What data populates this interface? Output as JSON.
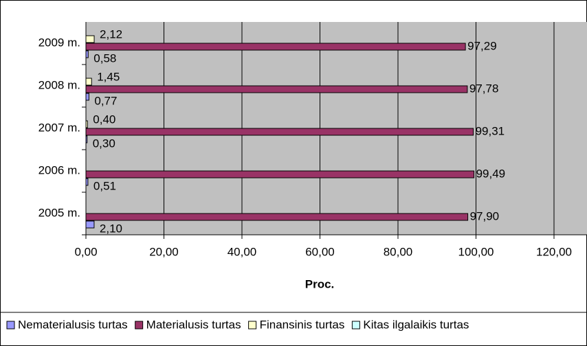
{
  "chart_data": {
    "type": "hbar",
    "categories": [
      "2005 m.",
      "2006 m.",
      "2007 m.",
      "2008 m.",
      "2009 m."
    ],
    "series": [
      {
        "name": "Nematerialusis turtas",
        "color": "#9999ff",
        "values": [
          2.1,
          0.51,
          0.3,
          0.77,
          0.58
        ],
        "value_labels": [
          "2,10",
          "0,51",
          "0,30",
          "0,77",
          "0,58"
        ]
      },
      {
        "name": "Materialusis turtas",
        "color": "#993366",
        "values": [
          97.9,
          99.49,
          99.31,
          97.78,
          97.29
        ],
        "value_labels": [
          "97,90",
          "99,49",
          "99,31",
          "97,78",
          "97,29"
        ]
      },
      {
        "name": "Finansinis turtas",
        "color": "#ffffcc",
        "values": [
          null,
          null,
          0.4,
          1.45,
          2.12
        ],
        "value_labels": [
          null,
          null,
          "0,40",
          "1,45",
          "2,12"
        ]
      },
      {
        "name": "Kitas ilgalaikis turtas",
        "color": "#ccffff",
        "values": [
          null,
          null,
          null,
          null,
          null
        ],
        "value_labels": [
          null,
          null,
          null,
          null,
          null
        ]
      }
    ],
    "xlabel": "Proc.",
    "xlim": [
      0,
      120
    ],
    "xticks": [
      {
        "value": 0,
        "label": "0,00"
      },
      {
        "value": 20,
        "label": "20,00"
      },
      {
        "value": 40,
        "label": "40,00"
      },
      {
        "value": 60,
        "label": "60,00"
      },
      {
        "value": 80,
        "label": "80,00"
      },
      {
        "value": 100,
        "label": "100,00"
      },
      {
        "value": 120,
        "label": "120,00"
      }
    ],
    "grid": true,
    "legend": "bottom"
  }
}
